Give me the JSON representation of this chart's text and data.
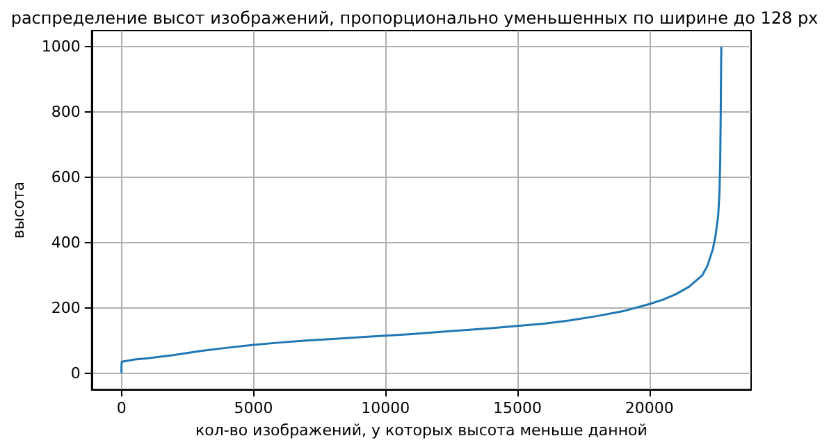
{
  "chart_data": {
    "type": "line",
    "title": "распределение высот изображений, пропорционально уменьшенных по ширине до 128 px",
    "xlabel": "кол-во изображений, у которых высота меньше данной",
    "ylabel": "высота",
    "x": [
      0,
      0,
      10,
      500,
      1000,
      2000,
      3000,
      4000,
      5000,
      6000,
      7000,
      8000,
      9000,
      10000,
      11000,
      12000,
      13000,
      14000,
      15000,
      16000,
      17000,
      18000,
      19000,
      20000,
      20500,
      21000,
      21500,
      22000,
      22200,
      22400,
      22500,
      22600,
      22650,
      22680,
      22700,
      22720
    ],
    "series": [
      {
        "color": "#1f77b4",
        "values": [
          0,
          20,
          35,
          42,
          46,
          56,
          68,
          78,
          87,
          94,
          100,
          105,
          110,
          115,
          120,
          126,
          132,
          138,
          145,
          152,
          162,
          175,
          190,
          212,
          225,
          242,
          265,
          300,
          330,
          380,
          420,
          480,
          550,
          650,
          800,
          1000
        ]
      }
    ],
    "xlim": [
      -1130,
      23850
    ],
    "xticks": [
      0,
      5000,
      10000,
      15000,
      20000
    ],
    "ylim": [
      -50,
      1050
    ],
    "yticks": [
      0,
      200,
      400,
      600,
      800,
      1000
    ],
    "grid": true,
    "marker": "none",
    "line_style": "solid"
  }
}
